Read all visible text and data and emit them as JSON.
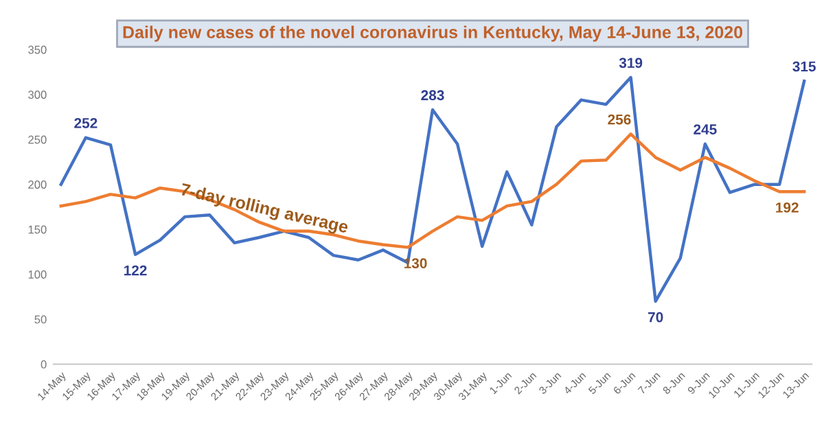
{
  "chart_data": {
    "type": "line",
    "title": "Daily new cases of the novel coronavirus in Kentucky, May 14-June 13, 2020",
    "categories": [
      "14-May",
      "15-May",
      "16-May",
      "17-May",
      "18-May",
      "19-May",
      "20-May",
      "21-May",
      "22-May",
      "23-May",
      "24-May",
      "25-May",
      "26-May",
      "27-May",
      "28-May",
      "29-May",
      "30-May",
      "31-May",
      "1-Jun",
      "2-Jun",
      "3-Jun",
      "4-Jun",
      "5-Jun",
      "6-Jun",
      "7-Jun",
      "8-Jun",
      "9-Jun",
      "10-Jun",
      "11-Jun",
      "12-Jun",
      "13-Jun"
    ],
    "series": [
      {
        "color": "#4472c4",
        "values": [
          200,
          252,
          244,
          122,
          138,
          164,
          166,
          135,
          141,
          148,
          141,
          121,
          116,
          127,
          113,
          283,
          245,
          131,
          214,
          155,
          264,
          294,
          289,
          319,
          70,
          118,
          245,
          191,
          200,
          200,
          315
        ],
        "value_labels": [
          null,
          "252",
          null,
          "122",
          null,
          null,
          null,
          null,
          null,
          null,
          null,
          null,
          null,
          null,
          null,
          "283",
          null,
          null,
          null,
          null,
          null,
          null,
          null,
          "319",
          "70",
          null,
          "245",
          null,
          null,
          null,
          "315"
        ]
      },
      {
        "name": "7-day rolling average",
        "color": "#ed7d31",
        "values": [
          176,
          181,
          189,
          185,
          196,
          192,
          183,
          172,
          158,
          148,
          148,
          144,
          137,
          133,
          130,
          148,
          164,
          160,
          176,
          181,
          200,
          226,
          227,
          256,
          230,
          216,
          230,
          218,
          204,
          192,
          192
        ],
        "value_labels": [
          null,
          null,
          null,
          null,
          null,
          null,
          null,
          null,
          null,
          null,
          null,
          null,
          null,
          null,
          "130",
          null,
          null,
          null,
          null,
          null,
          null,
          null,
          null,
          "256",
          null,
          null,
          null,
          null,
          null,
          "192",
          null
        ]
      }
    ],
    "ylim": [
      0,
      350
    ],
    "yticks": [
      0,
      50,
      100,
      150,
      200,
      250,
      300,
      350
    ],
    "grid": false,
    "legend": false,
    "marker": "none",
    "line_style": "solid"
  }
}
